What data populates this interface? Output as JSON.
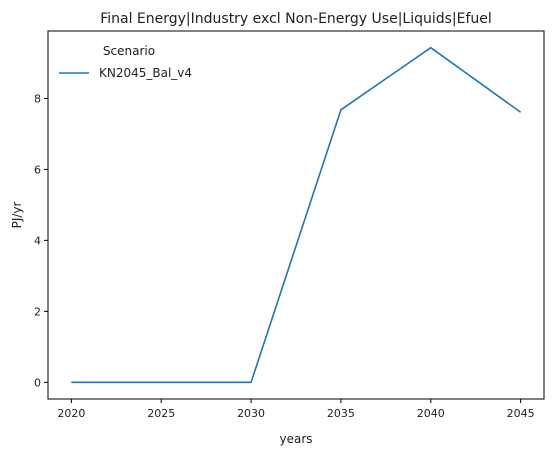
{
  "chart_data": {
    "type": "line",
    "title": "Final Energy|Industry excl Non-Energy Use|Liquids|Efuel",
    "xlabel": "years",
    "ylabel": "PJ/yr",
    "x": [
      2020,
      2025,
      2030,
      2035,
      2040,
      2045
    ],
    "series": [
      {
        "name": "KN2045_Bal_v4",
        "color": "#1f77b4",
        "values": [
          0.0,
          0.0,
          0.0,
          7.68,
          9.43,
          7.61
        ]
      }
    ],
    "xticks": [
      2020,
      2025,
      2030,
      2035,
      2040,
      2045
    ],
    "yticks": [
      0,
      2,
      4,
      6,
      8
    ],
    "xlim": [
      2018.7,
      2046.3
    ],
    "ylim": [
      -0.47,
      9.9
    ],
    "grid": false,
    "legend": {
      "title": "Scenario",
      "placement": "top-left"
    }
  }
}
